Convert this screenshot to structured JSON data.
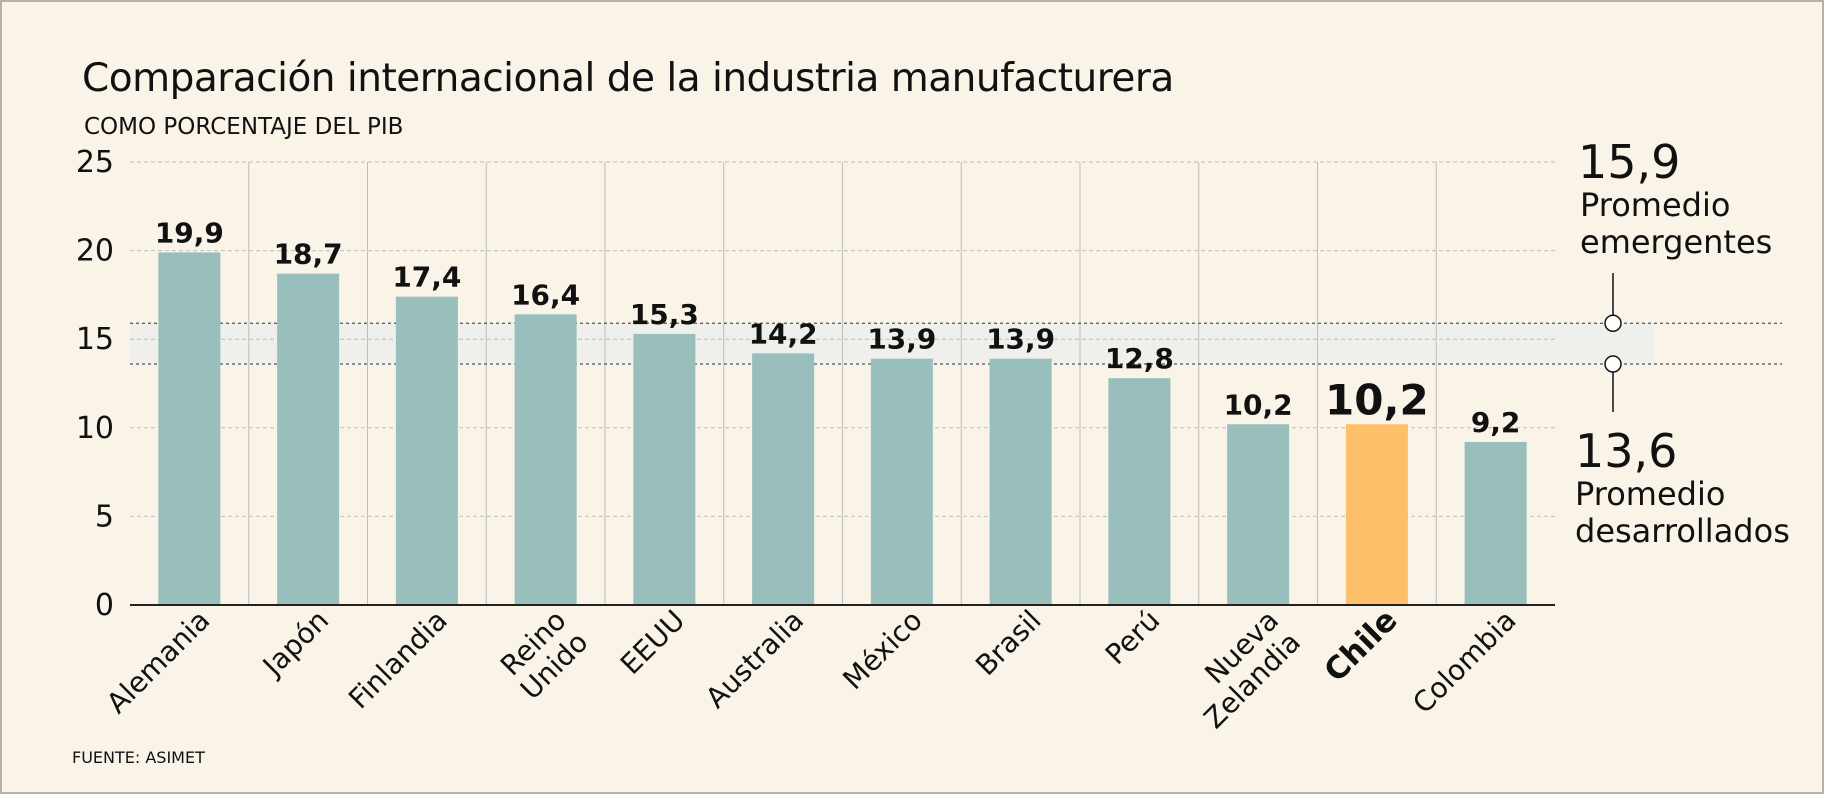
{
  "title": "Comparación internacional de la industria manufacturera",
  "subtitle": "COMO PORCENTAJE DEL PIB",
  "source": "FUENTE: ASIMET",
  "colors": {
    "bar": "#99bfbd",
    "highlight": "#fdbf69",
    "band": "#efefec",
    "grid": "#bdbdbd",
    "axis": "#222222"
  },
  "chart_data": {
    "type": "bar",
    "title": "Comparación internacional de la industria manufacturera",
    "ylabel": "COMO PORCENTAJE DEL PIB",
    "ylim": [
      0,
      25
    ],
    "yticks": [
      "0",
      "5",
      "10",
      "15",
      "20",
      "25"
    ],
    "categories": [
      [
        "Alemania"
      ],
      [
        "Japón"
      ],
      [
        "Finlandia"
      ],
      [
        "Reino",
        "Unido"
      ],
      [
        "EEUU"
      ],
      [
        "Australia"
      ],
      [
        "México"
      ],
      [
        "Brasil"
      ],
      [
        "Perú"
      ],
      [
        "Nueva",
        "Zelandia"
      ],
      [
        "Chile"
      ],
      [
        "Colombia"
      ]
    ],
    "values": [
      19.9,
      18.7,
      17.4,
      16.4,
      15.3,
      14.2,
      13.9,
      13.9,
      12.8,
      10.2,
      10.2,
      9.2
    ],
    "value_labels": [
      "19,9",
      "18,7",
      "17,4",
      "16,4",
      "15,3",
      "14,2",
      "13,9",
      "13,9",
      "12,8",
      "10,2",
      "10,2",
      "9,2"
    ],
    "highlight": "Chile",
    "reference_lines": [
      {
        "value": 15.9,
        "label_value": "15,9",
        "label": [
          "Promedio",
          "emergentes"
        ],
        "label_position": "above"
      },
      {
        "value": 13.6,
        "label_value": "13,6",
        "label": [
          "Promedio",
          "desarrollados"
        ],
        "label_position": "below"
      }
    ]
  }
}
